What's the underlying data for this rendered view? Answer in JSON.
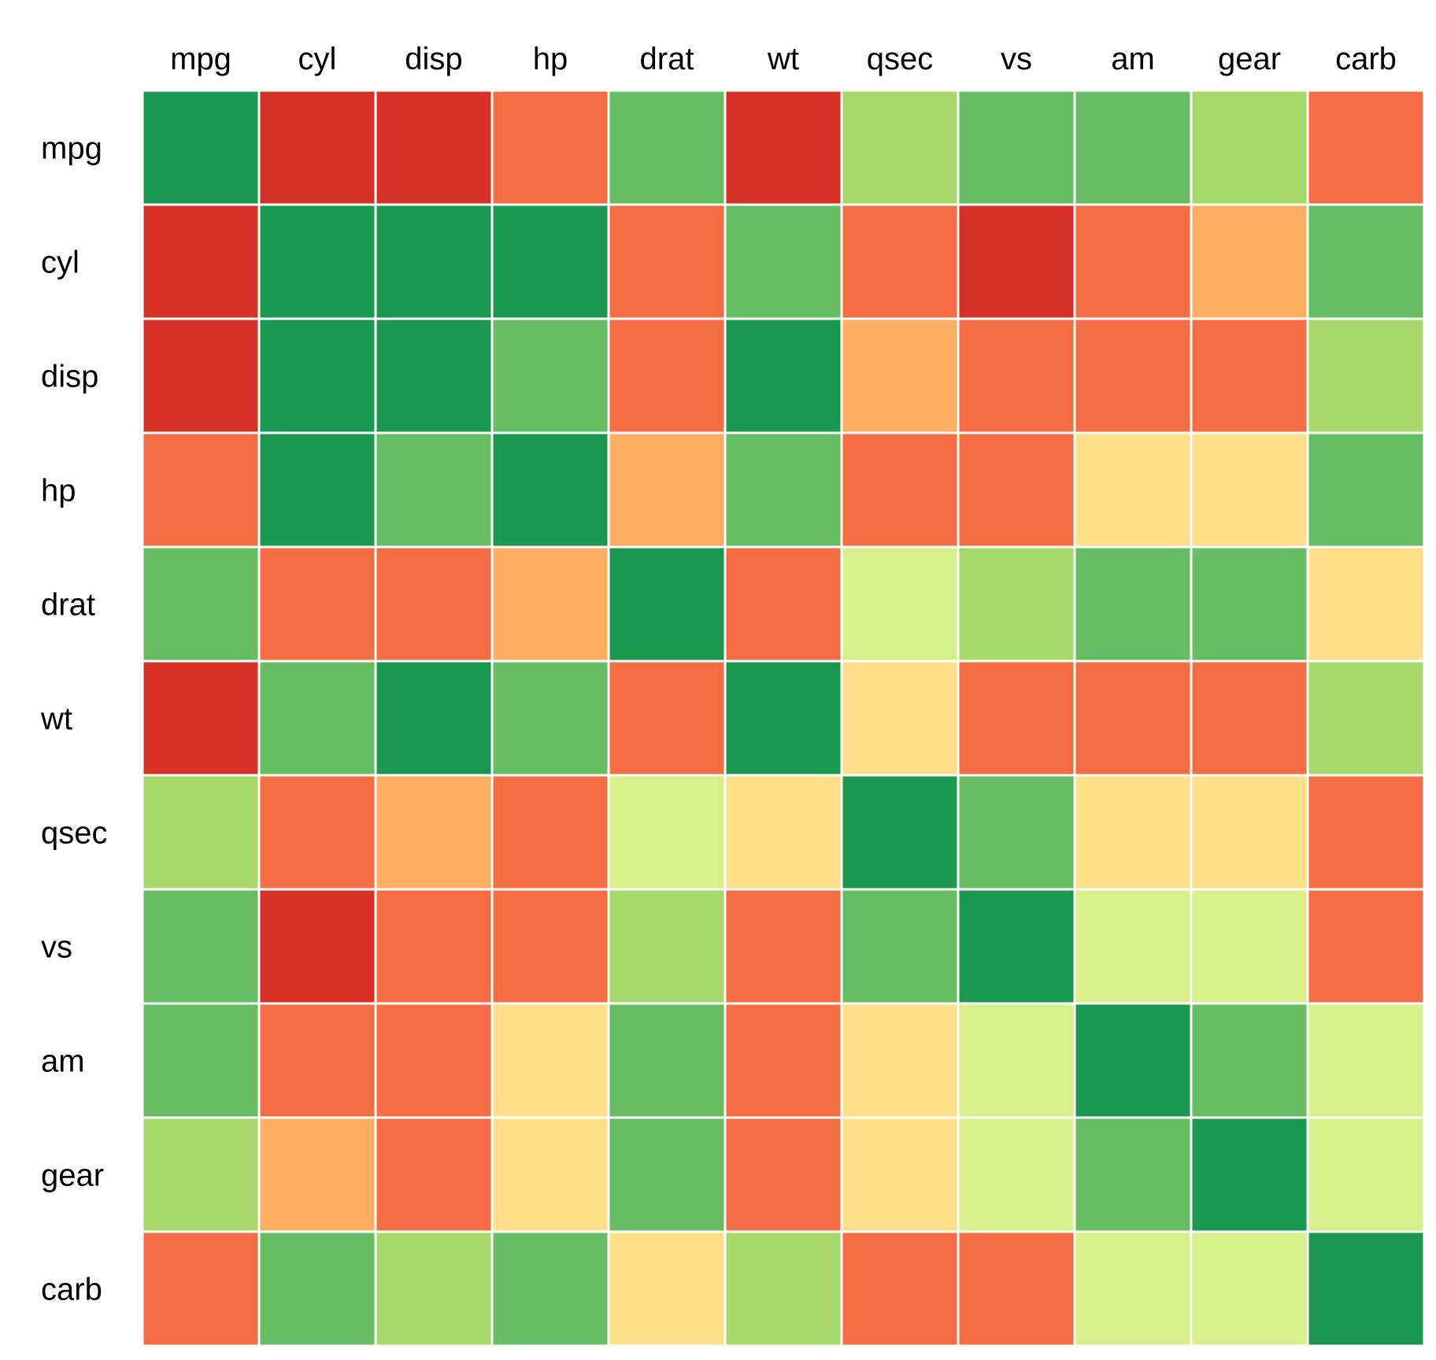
{
  "chart_data": {
    "type": "heatmap",
    "title": "",
    "xlabel": "",
    "ylabel": "",
    "grid": true,
    "legend": "none",
    "x_labels": [
      "mpg",
      "cyl",
      "disp",
      "hp",
      "drat",
      "wt",
      "qsec",
      "vs",
      "am",
      "gear",
      "carb"
    ],
    "y_labels": [
      "mpg",
      "cyl",
      "disp",
      "hp",
      "drat",
      "wt",
      "qsec",
      "vs",
      "am",
      "gear",
      "carb"
    ],
    "value_range": [
      -1,
      1
    ],
    "colors": {
      "dark_red": "#d73027",
      "orange_red": "#f46d43",
      "orange": "#fdae61",
      "pale_yellow": "#fee08b",
      "light_yellow_green": "#d9ef8b",
      "light_green": "#a6d96a",
      "medium_green": "#66bd63",
      "dark_green": "#1a9850"
    },
    "matrix": [
      [
        1.0,
        -0.85,
        -0.85,
        -0.78,
        0.68,
        -0.87,
        0.42,
        0.66,
        0.6,
        0.48,
        -0.55
      ],
      [
        -0.85,
        1.0,
        0.9,
        0.83,
        -0.7,
        0.78,
        -0.59,
        -0.81,
        -0.52,
        -0.49,
        0.53
      ],
      [
        -0.85,
        0.9,
        1.0,
        0.79,
        -0.71,
        0.89,
        -0.43,
        -0.71,
        -0.59,
        -0.56,
        0.39
      ],
      [
        -0.78,
        0.83,
        0.79,
        1.0,
        -0.45,
        0.66,
        -0.71,
        -0.72,
        -0.24,
        -0.13,
        0.75
      ],
      [
        0.68,
        -0.7,
        -0.71,
        -0.45,
        1.0,
        -0.71,
        0.09,
        0.44,
        0.71,
        0.7,
        -0.09
      ],
      [
        -0.87,
        0.78,
        0.89,
        0.66,
        -0.71,
        1.0,
        -0.17,
        -0.55,
        -0.69,
        -0.58,
        0.43
      ],
      [
        0.42,
        -0.59,
        -0.43,
        -0.71,
        0.09,
        -0.17,
        1.0,
        0.74,
        -0.23,
        -0.21,
        -0.66
      ],
      [
        0.66,
        -0.81,
        -0.71,
        -0.72,
        0.44,
        -0.55,
        0.74,
        1.0,
        0.17,
        0.21,
        -0.57
      ],
      [
        0.6,
        -0.52,
        -0.59,
        -0.24,
        0.71,
        -0.69,
        -0.23,
        0.17,
        1.0,
        0.79,
        0.06
      ],
      [
        0.48,
        -0.49,
        -0.56,
        -0.13,
        0.7,
        -0.58,
        -0.21,
        0.21,
        0.79,
        1.0,
        0.27
      ],
      [
        -0.55,
        0.53,
        0.39,
        0.75,
        -0.09,
        0.43,
        -0.66,
        -0.57,
        0.06,
        0.27,
        1.0
      ]
    ]
  }
}
